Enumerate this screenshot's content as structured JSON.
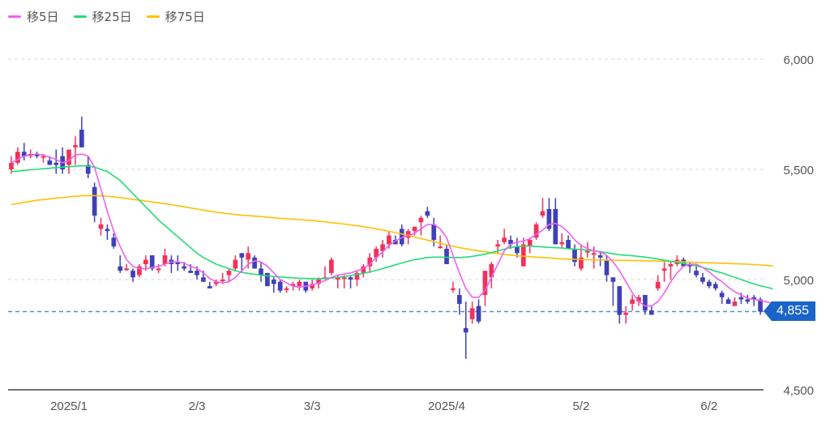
{
  "legend": [
    {
      "label": "移5日",
      "color": "#f060f0"
    },
    {
      "label": "移25日",
      "color": "#22dd77"
    },
    {
      "label": "移75日",
      "color": "#ffc000"
    }
  ],
  "current_price": {
    "label": "4,855",
    "value": 4855,
    "color": "#1a64c8"
  },
  "chart_data": {
    "type": "candlestick",
    "title": "",
    "xlabel": "",
    "ylabel": "",
    "ylim": [
      4500,
      6000
    ],
    "yticks": [
      {
        "value": 6000,
        "label": "6,000"
      },
      {
        "value": 5500,
        "label": "5,500"
      },
      {
        "value": 5000,
        "label": "5,000"
      },
      {
        "value": 4500,
        "label": "4,500"
      }
    ],
    "xticks": [
      {
        "index": 9,
        "label": "2025/1"
      },
      {
        "index": 29,
        "label": "2/3"
      },
      {
        "index": 47,
        "label": "3/3"
      },
      {
        "index": 68,
        "label": "2025/4"
      },
      {
        "index": 89,
        "label": "5/2"
      },
      {
        "index": 109,
        "label": "6/2"
      }
    ],
    "grid": "horizontal dashed",
    "up_color": "#f0325a",
    "down_color": "#4040b8",
    "candles": [
      [
        5500,
        5560,
        5480,
        5530
      ],
      [
        5530,
        5600,
        5520,
        5580
      ],
      [
        5580,
        5620,
        5540,
        5560
      ],
      [
        5560,
        5590,
        5550,
        5570
      ],
      [
        5570,
        5580,
        5550,
        5560
      ],
      [
        5560,
        5570,
        5530,
        5560
      ],
      [
        5540,
        5560,
        5520,
        5520
      ],
      [
        5530,
        5590,
        5480,
        5520
      ],
      [
        5560,
        5600,
        5480,
        5500
      ],
      [
        5520,
        5580,
        5480,
        5590
      ],
      [
        5600,
        5650,
        5520,
        5610
      ],
      [
        5680,
        5740,
        5600,
        5600
      ],
      [
        5520,
        5560,
        5460,
        5480
      ],
      [
        5420,
        5440,
        5260,
        5290
      ],
      [
        5230,
        5280,
        5200,
        5250
      ],
      [
        5230,
        5250,
        5180,
        5220
      ],
      [
        5190,
        5210,
        5140,
        5150
      ],
      [
        5060,
        5110,
        5030,
        5040
      ],
      [
        5050,
        5070,
        5040,
        5050
      ],
      [
        5040,
        5050,
        4990,
        5010
      ],
      [
        5020,
        5070,
        5010,
        5060
      ],
      [
        5070,
        5110,
        5040,
        5090
      ],
      [
        5110,
        5110,
        5040,
        5050
      ],
      [
        5050,
        5070,
        5030,
        5050
      ],
      [
        5070,
        5140,
        5060,
        5110
      ],
      [
        5090,
        5110,
        5030,
        5070
      ],
      [
        5080,
        5110,
        5040,
        5070
      ],
      [
        5060,
        5080,
        5040,
        5050
      ],
      [
        5040,
        5070,
        5030,
        5030
      ],
      [
        5040,
        5060,
        5000,
        5020
      ],
      [
        5010,
        5040,
        4990,
        4990
      ],
      [
        4970,
        4990,
        4960,
        4960
      ],
      [
        4980,
        5000,
        4970,
        4990
      ],
      [
        5000,
        5030,
        4980,
        5000
      ],
      [
        5020,
        5050,
        4990,
        5040
      ],
      [
        5050,
        5110,
        5040,
        5090
      ],
      [
        5120,
        5120,
        5030,
        5100
      ],
      [
        5090,
        5150,
        5050,
        5120
      ],
      [
        5100,
        5110,
        5050,
        5050
      ],
      [
        5050,
        5080,
        4990,
        5020
      ],
      [
        5030,
        5030,
        4970,
        4970
      ],
      [
        5000,
        5010,
        4940,
        4980
      ],
      [
        4990,
        5000,
        4940,
        4950
      ],
      [
        4960,
        4970,
        4940,
        4960
      ],
      [
        4970,
        4990,
        4950,
        4980
      ],
      [
        4970,
        5000,
        4950,
        4990
      ],
      [
        4990,
        4990,
        4940,
        4950
      ],
      [
        4960,
        5000,
        4950,
        4980
      ],
      [
        4980,
        5010,
        4960,
        5000
      ],
      [
        5010,
        5060,
        5000,
        5010
      ],
      [
        5030,
        5100,
        5020,
        5090
      ],
      [
        5000,
        5020,
        4960,
        5010
      ],
      [
        5010,
        5020,
        4960,
        5010
      ],
      [
        5010,
        5020,
        4960,
        5000
      ],
      [
        5000,
        5040,
        4970,
        5030
      ],
      [
        5030,
        5070,
        5010,
        5060
      ],
      [
        5060,
        5120,
        5030,
        5100
      ],
      [
        5100,
        5150,
        5080,
        5140
      ],
      [
        5130,
        5180,
        5100,
        5160
      ],
      [
        5160,
        5220,
        5140,
        5200
      ],
      [
        5180,
        5200,
        5160,
        5160
      ],
      [
        5230,
        5250,
        5150,
        5160
      ],
      [
        5190,
        5230,
        5160,
        5220
      ],
      [
        5220,
        5240,
        5200,
        5240
      ],
      [
        5260,
        5290,
        5200,
        5280
      ],
      [
        5310,
        5330,
        5280,
        5290
      ],
      [
        5250,
        5280,
        5150,
        5180
      ],
      [
        5150,
        5200,
        5140,
        5150
      ],
      [
        5140,
        5160,
        5070,
        5070
      ],
      [
        4960,
        4990,
        4940,
        4960
      ],
      [
        4930,
        4960,
        4840,
        4890
      ],
      [
        4780,
        4900,
        4640,
        4760
      ],
      [
        4820,
        4900,
        4800,
        4870
      ],
      [
        4880,
        4910,
        4800,
        4810
      ],
      [
        4930,
        5020,
        4880,
        5040
      ],
      [
        5010,
        5080,
        4960,
        5070
      ],
      [
        5150,
        5180,
        5120,
        5160
      ],
      [
        5170,
        5230,
        5160,
        5190
      ],
      [
        5180,
        5200,
        5140,
        5160
      ],
      [
        5150,
        5190,
        5100,
        5120
      ],
      [
        5060,
        5190,
        5060,
        5160
      ],
      [
        5150,
        5190,
        5120,
        5180
      ],
      [
        5190,
        5260,
        5180,
        5250
      ],
      [
        5290,
        5370,
        5280,
        5310
      ],
      [
        5320,
        5370,
        5220,
        5230
      ],
      [
        5320,
        5370,
        5160,
        5160
      ],
      [
        5160,
        5210,
        5140,
        5170
      ],
      [
        5180,
        5200,
        5140,
        5140
      ],
      [
        5140,
        5160,
        5060,
        5080
      ],
      [
        5050,
        5160,
        5040,
        5100
      ],
      [
        5130,
        5170,
        5100,
        5130
      ],
      [
        5120,
        5150,
        5050,
        5120
      ],
      [
        5110,
        5130,
        5060,
        5100
      ],
      [
        5090,
        5110,
        4990,
        5020
      ],
      [
        5010,
        5010,
        4880,
        4990
      ],
      [
        4970,
        4970,
        4800,
        4840
      ],
      [
        4840,
        4880,
        4800,
        4850
      ],
      [
        4890,
        4930,
        4860,
        4910
      ],
      [
        4900,
        4930,
        4880,
        4920
      ],
      [
        4930,
        4930,
        4840,
        4860
      ],
      [
        4860,
        4880,
        4840,
        4840
      ],
      [
        4960,
        5020,
        4950,
        4990
      ],
      [
        5040,
        5080,
        4990,
        5050
      ],
      [
        5060,
        5080,
        5000,
        5070
      ],
      [
        5070,
        5110,
        5060,
        5090
      ],
      [
        5090,
        5100,
        5060,
        5060
      ],
      [
        5070,
        5080,
        5030,
        5060
      ],
      [
        5040,
        5070,
        5010,
        5020
      ],
      [
        5010,
        5030,
        4980,
        4990
      ],
      [
        4990,
        5000,
        4960,
        4970
      ],
      [
        4980,
        4990,
        4950,
        4960
      ],
      [
        4940,
        4950,
        4890,
        4920
      ],
      [
        4910,
        4920,
        4890,
        4890
      ],
      [
        4880,
        4920,
        4880,
        4900
      ],
      [
        4920,
        4940,
        4890,
        4910
      ],
      [
        4910,
        4930,
        4890,
        4900
      ],
      [
        4920,
        4930,
        4880,
        4910
      ],
      [
        4910,
        4920,
        4840,
        4855
      ]
    ],
    "series": [
      {
        "name": "移5日",
        "color": "#f060f0",
        "values": [
          5530,
          5545,
          5560,
          5565,
          5570,
          5565,
          5555,
          5545,
          5530,
          5540,
          5565,
          5570,
          5560,
          5510,
          5410,
          5310,
          5220,
          5150,
          5090,
          5060,
          5050,
          5050,
          5055,
          5060,
          5070,
          5080,
          5080,
          5075,
          5060,
          5050,
          5030,
          5005,
          4990,
          4985,
          4990,
          5010,
          5040,
          5070,
          5085,
          5080,
          5060,
          5030,
          5000,
          4985,
          4970,
          4965,
          4970,
          4975,
          4985,
          4995,
          5010,
          5020,
          5025,
          5030,
          5040,
          5050,
          5070,
          5100,
          5125,
          5155,
          5175,
          5190,
          5200,
          5210,
          5230,
          5250,
          5250,
          5230,
          5190,
          5110,
          5030,
          4960,
          4920,
          4920,
          4950,
          5010,
          5070,
          5130,
          5160,
          5170,
          5175,
          5185,
          5205,
          5225,
          5250,
          5255,
          5240,
          5215,
          5180,
          5155,
          5140,
          5130,
          5125,
          5110,
          5080,
          5040,
          4990,
          4940,
          4900,
          4880,
          4880,
          4900,
          4940,
          4990,
          5030,
          5060,
          5070,
          5070,
          5055,
          5035,
          5010,
          4990,
          4965,
          4945,
          4930,
          4915,
          4910,
          4905,
          4898,
          4892
        ]
      },
      {
        "name": "移25日",
        "color": "#22dd77",
        "values": [
          5490,
          5492,
          5495,
          5498,
          5500,
          5503,
          5505,
          5508,
          5510,
          5512,
          5514,
          5516,
          5515,
          5510,
          5500,
          5490,
          5470,
          5450,
          5420,
          5390,
          5360,
          5330,
          5300,
          5270,
          5245,
          5220,
          5195,
          5170,
          5145,
          5120,
          5100,
          5085,
          5070,
          5060,
          5050,
          5040,
          5033,
          5028,
          5024,
          5020,
          5017,
          5014,
          5012,
          5010,
          5008,
          5006,
          5005,
          5004,
          5004,
          5005,
          5007,
          5010,
          5014,
          5018,
          5023,
          5028,
          5035,
          5042,
          5050,
          5058,
          5067,
          5075,
          5083,
          5090,
          5095,
          5100,
          5102,
          5102,
          5101,
          5100,
          5100,
          5102,
          5105,
          5110,
          5115,
          5122,
          5130,
          5138,
          5146,
          5150,
          5152,
          5152,
          5150,
          5148,
          5146,
          5145,
          5143,
          5140,
          5138,
          5136,
          5133,
          5130,
          5126,
          5122,
          5117,
          5113,
          5110,
          5108,
          5105,
          5102,
          5098,
          5093,
          5088,
          5083,
          5078,
          5073,
          5068,
          5062,
          5055,
          5047,
          5038,
          5030,
          5020,
          5010,
          5000,
          4990,
          4980,
          4972,
          4965,
          4958
        ]
      },
      {
        "name": "移75日",
        "color": "#ffc000",
        "values": [
          5340,
          5345,
          5350,
          5355,
          5360,
          5363,
          5366,
          5370,
          5372,
          5375,
          5378,
          5380,
          5381,
          5381,
          5380,
          5378,
          5375,
          5372,
          5368,
          5364,
          5360,
          5356,
          5352,
          5348,
          5344,
          5340,
          5335,
          5330,
          5325,
          5320,
          5315,
          5310,
          5306,
          5302,
          5298,
          5295,
          5292,
          5290,
          5288,
          5286,
          5283,
          5280,
          5278,
          5276,
          5274,
          5272,
          5270,
          5268,
          5265,
          5262,
          5258,
          5255,
          5252,
          5248,
          5244,
          5240,
          5235,
          5230,
          5225,
          5219,
          5213,
          5207,
          5200,
          5193,
          5186,
          5179,
          5172,
          5165,
          5158,
          5151,
          5145,
          5140,
          5135,
          5130,
          5126,
          5122,
          5118,
          5114,
          5111,
          5108,
          5106,
          5104,
          5102,
          5100,
          5098,
          5096,
          5094,
          5093,
          5092,
          5091,
          5090,
          5089,
          5089,
          5088,
          5088,
          5087,
          5087,
          5086,
          5086,
          5085,
          5085,
          5084,
          5083,
          5082,
          5081,
          5080,
          5079,
          5078,
          5077,
          5076,
          5075,
          5074,
          5073,
          5072,
          5071,
          5070,
          5068,
          5066,
          5064,
          5062
        ]
      }
    ]
  }
}
